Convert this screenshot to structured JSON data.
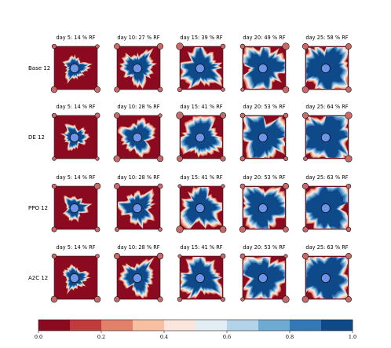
{
  "chart_data": {
    "type": "heatmap",
    "rows": [
      "Base 12",
      "DE 12",
      "PPO 12",
      "A2C 12"
    ],
    "columns": [
      "day 5",
      "day 10",
      "day 15",
      "day 20",
      "day 25"
    ],
    "panel_titles": [
      [
        "day 5: 14 % RF",
        "day 10: 27 % RF",
        "day 15: 39 % RF",
        "day 20: 49 % RF",
        "day 25: 58 % RF"
      ],
      [
        "day 5: 14 % RF",
        "day 10: 28 % RF",
        "day 15: 41 % RF",
        "day 20: 53 % RF",
        "day 25: 64 % RF"
      ],
      [
        "day 5: 14 % RF",
        "day 10: 28 % RF",
        "day 15: 41 % RF",
        "day 20: 53 % RF",
        "day 25: 63 % RF"
      ],
      [
        "day 5: 14 % RF",
        "day 10: 28 % RF",
        "day 15: 41 % RF",
        "day 20: 53 % RF",
        "day 25: 63 % RF"
      ]
    ],
    "recovery_factor_percent": [
      [
        14,
        27,
        39,
        49,
        58
      ],
      [
        14,
        28,
        41,
        53,
        64
      ],
      [
        14,
        28,
        41,
        53,
        63
      ],
      [
        14,
        28,
        41,
        53,
        63
      ]
    ],
    "colorbar": {
      "ticks": [
        "0.0",
        "0.2",
        "0.4",
        "0.6",
        "0.8",
        "1.0"
      ],
      "range": [
        0,
        1
      ],
      "bins": 10,
      "colors": [
        "#8b0a1f",
        "#c13b3c",
        "#e2806a",
        "#f8bfa2",
        "#fbe5dd",
        "#e3eef4",
        "#b3d3e8",
        "#6eaad1",
        "#3479b7",
        "#0e4a89"
      ]
    },
    "colors": {
      "sweep_background": "#8b0a1f",
      "injector_well": "#6b95ea",
      "producer_well": "#c86a6a"
    }
  }
}
